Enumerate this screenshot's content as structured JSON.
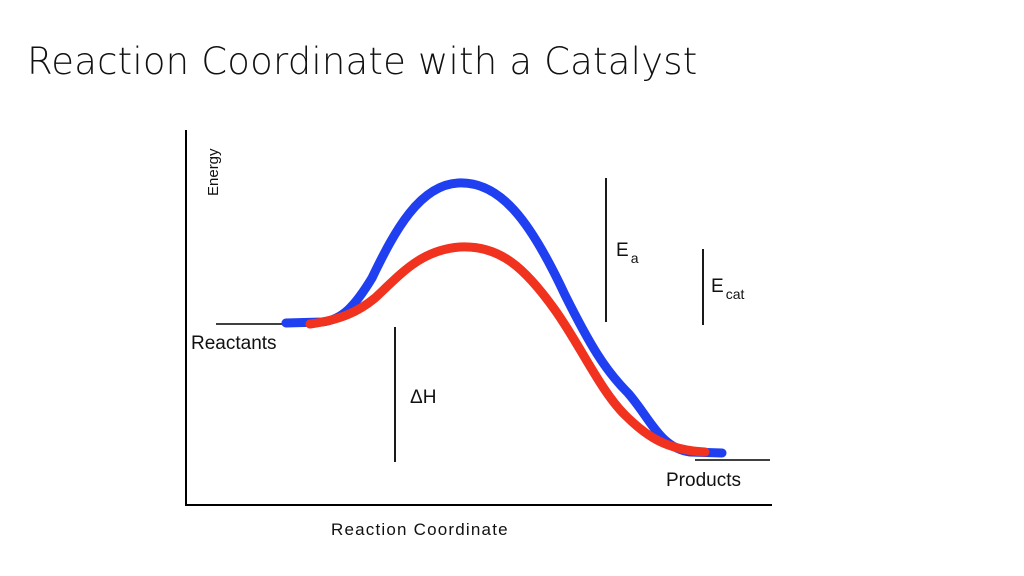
{
  "slide": {
    "title": "Reaction Coordinate with a Catalyst"
  },
  "diagram": {
    "y_axis_label": "Energy",
    "x_axis_label": "Reaction Coordinate",
    "reactants_label": "Reactants",
    "products_label": "Products",
    "delta_h_label": "ΔH",
    "ea_label_main": "E",
    "ea_label_sub": "a",
    "ecat_label_main": "E",
    "ecat_label_sub": "cat",
    "colors": {
      "uncatalyzed": "#1f3ff0",
      "catalyzed": "#f0321e",
      "axis": "#000000"
    }
  }
}
